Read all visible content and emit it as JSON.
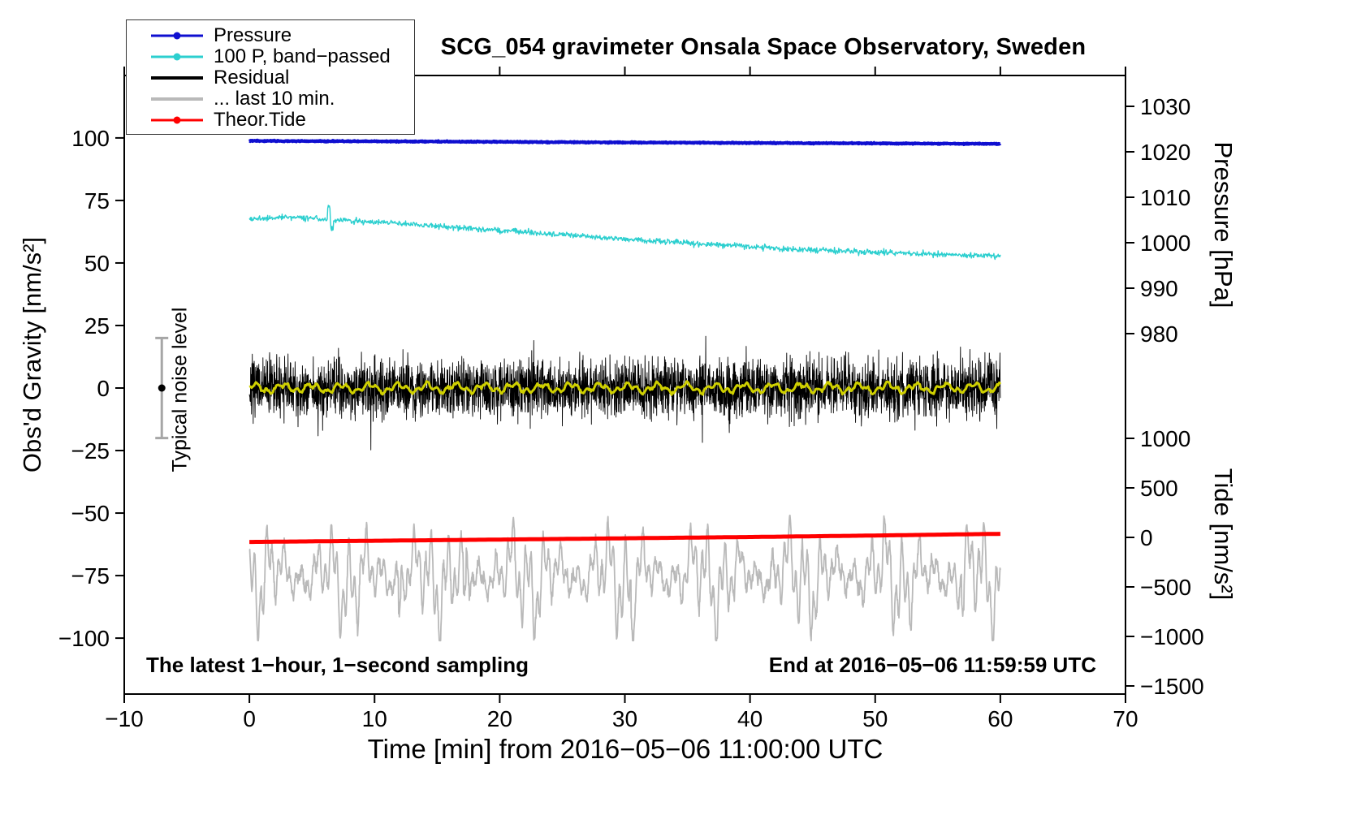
{
  "chart_data": {
    "type": "line",
    "title": "SCG_054 gravimeter Onsala Space Observatory, Sweden",
    "xlabel": "Time [min] from 2016−05−06 11:00:00 UTC",
    "x_axis": {
      "min": -10,
      "max": 70,
      "ticks": [
        -10,
        0,
        10,
        20,
        30,
        40,
        50,
        60,
        70
      ]
    },
    "y_left": {
      "label": "Obs'd Gravity [nm/s²]",
      "min": -122,
      "max": 125,
      "ticks": [
        100,
        75,
        50,
        25,
        0,
        -25,
        -50,
        -75,
        -100
      ]
    },
    "y_right_pressure": {
      "label": "Pressure [hPa]",
      "ticks": [
        1030,
        1020,
        1010,
        1000,
        990,
        980
      ]
    },
    "y_right_tide": {
      "label": "Tide [nm/s²]",
      "ticks": [
        1000,
        500,
        0,
        -500,
        -1000,
        -1500
      ]
    },
    "grid": false,
    "legend_position": "top-left",
    "annotations": {
      "sampling": "The latest 1−hour, 1−second sampling",
      "end": "End at 2016−05−06 11:59:59 UTC"
    },
    "noise_marker": {
      "label": "Typical noise level",
      "x": -7,
      "center": 0,
      "half_range": 20
    },
    "series": [
      {
        "id": "pressure",
        "name": "Pressure",
        "color": "#0f0fd0",
        "axis": "pressure",
        "stroke": 4,
        "z": 4,
        "legend_marker": "line-dot",
        "seed": 3,
        "samples": 2000,
        "noise": 0.1,
        "anchors": [
          [
            0,
            1022.4
          ],
          [
            10,
            1022.3
          ],
          [
            20,
            1022.2
          ],
          [
            30,
            1022.05
          ],
          [
            40,
            1021.95
          ],
          [
            50,
            1021.85
          ],
          [
            60,
            1021.75
          ]
        ]
      },
      {
        "id": "band-passed",
        "name": "100 P, band−passed",
        "color": "#2ccfcf",
        "axis": "gravity",
        "stroke": 1.4,
        "z": 3,
        "legend_marker": "line-dot",
        "seed": 5,
        "samples": 1400,
        "noise": 1.0,
        "anchors": [
          [
            0,
            67.5
          ],
          [
            3,
            68.5
          ],
          [
            6,
            67.5
          ],
          [
            10,
            66.5
          ],
          [
            14,
            65
          ],
          [
            18,
            63.8
          ],
          [
            22,
            62.3
          ],
          [
            26,
            61
          ],
          [
            30,
            59.5
          ],
          [
            34,
            58.3
          ],
          [
            38,
            57.2
          ],
          [
            42,
            56
          ],
          [
            46,
            55
          ],
          [
            50,
            54.2
          ],
          [
            54,
            53.6
          ],
          [
            60,
            52.8
          ]
        ],
        "spikes": [
          {
            "t": 6.35,
            "amp": 5
          },
          {
            "t": 6.6,
            "amp": -4
          }
        ]
      },
      {
        "id": "residual",
        "name": "Residual",
        "color": "#000000",
        "axis": "gravity",
        "stroke": 0.9,
        "z": 5,
        "legend_marker": "line",
        "seed": 7,
        "samples": 3600,
        "base": 0,
        "noise": 10,
        "tail": 0.02,
        "clamp": [
          -28.5,
          28.5
        ]
      },
      {
        "id": "last10",
        "name": "... last 10 min.",
        "color": "#b9b9b9",
        "axis": "gravity",
        "stroke": 1.8,
        "z": 1,
        "legend_marker": "line",
        "seed": 9,
        "samples": 2200,
        "base": -75,
        "noise": 2.2,
        "waves": [
          {
            "amp": 8,
            "period": 1.3,
            "phase": 0.7
          },
          {
            "amp": 6.5,
            "period": 0.47,
            "phase": 2.1
          },
          {
            "amp": 5,
            "period": 3.7,
            "phase": 4.0
          }
        ],
        "amp_mod": {
          "depth": 0.55,
          "period": 7.3,
          "phase": 1.2
        },
        "spikes": [
          {
            "t": 12,
            "amp": -12
          },
          {
            "t": 17.2,
            "amp": -14
          },
          {
            "t": 30.6,
            "amp": -16
          },
          {
            "t": 57,
            "amp": -10
          }
        ],
        "clamp": [
          -101,
          -48
        ]
      },
      {
        "id": "theor-tide",
        "name": "Theor.Tide",
        "color": "#ff0000",
        "axis": "tide",
        "stroke": 5,
        "z": 2,
        "legend_marker": "line-dot",
        "seed": 13,
        "samples": 240,
        "noise": 0,
        "anchors": [
          [
            0,
            -46
          ],
          [
            10,
            -34
          ],
          [
            20,
            -22
          ],
          [
            30,
            -9
          ],
          [
            40,
            4
          ],
          [
            50,
            19
          ],
          [
            60,
            36
          ]
        ]
      },
      {
        "id": "residual-smooth",
        "name": "",
        "color": "#cfd000",
        "axis": "gravity",
        "stroke": 3,
        "z": 6,
        "legend_marker": "none",
        "seed": 21,
        "samples": 700,
        "base": 0,
        "noise": 0.5,
        "waves": [
          {
            "amp": 1.4,
            "period": 2.3,
            "phase": 0.5
          },
          {
            "amp": 0.9,
            "period": 0.8,
            "phase": 3.2
          }
        ]
      }
    ]
  }
}
